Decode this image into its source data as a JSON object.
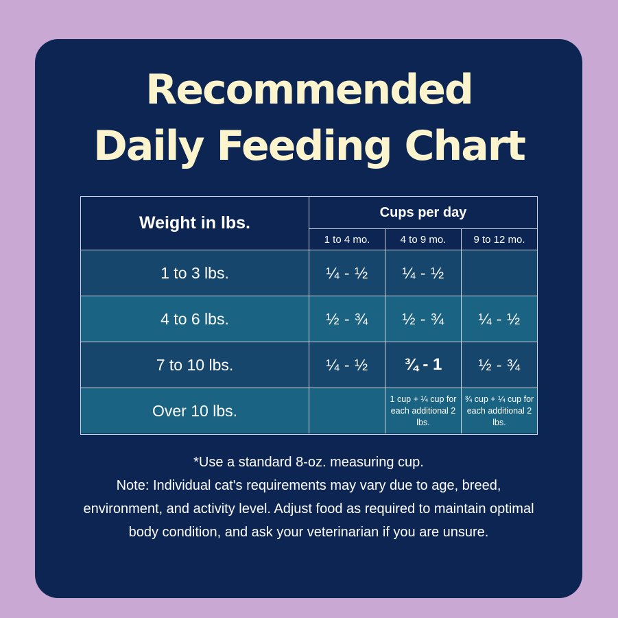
{
  "title": {
    "line1": "Recommended",
    "line2": "Daily Feeding Chart"
  },
  "table": {
    "weight_header": "Weight in lbs.",
    "cups_header": "Cups per day",
    "age_columns": [
      "1 to 4 mo.",
      "4 to 9 mo.",
      "9 to 12 mo."
    ],
    "rows": [
      {
        "weight": "1 to 3 lbs.",
        "values": [
          "¼ - ½",
          "¼ - ½",
          ""
        ]
      },
      {
        "weight": "4 to 6 lbs.",
        "values": [
          "½ - ¾",
          "½ - ¾",
          "¼ - ½"
        ]
      },
      {
        "weight": "7 to 10 lbs.",
        "values": [
          "¼ - ½",
          "¾ - 1",
          "½ - ¾"
        ]
      },
      {
        "weight": "Over 10 lbs.",
        "values": [
          "",
          "1 cup + ¼ cup for each additional 2 lbs.",
          "¾ cup + ¼ cup for each additional 2 lbs."
        ]
      }
    ]
  },
  "notes": {
    "measuring": "*Use a standard 8-oz. measuring cup.",
    "disclaimer": "Note: Individual cat's requirements may vary due to age, breed, environment, and activity level. Adjust food as required to maintain optimal body condition, and ask your veterinarian if you are unsure."
  },
  "colors": {
    "background": "#c9a8d4",
    "card": "#0c2552",
    "title": "#fcf4cc",
    "row_dark": "#17466d",
    "row_light": "#1b6383"
  }
}
